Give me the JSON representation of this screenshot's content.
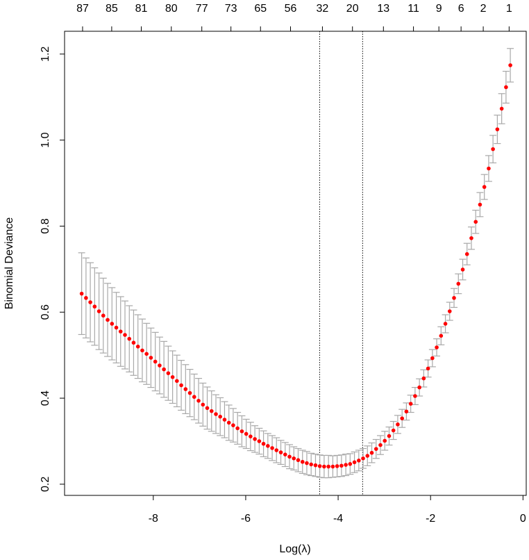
{
  "chart_data": {
    "type": "errorbar",
    "xlabel": "Log(λ)",
    "ylabel": "Binomial Deviance",
    "xlim": [
      -9.92,
      0.07
    ],
    "ylim": [
      0.174,
      1.253
    ],
    "xticks": [
      -8,
      -6,
      -4,
      -2,
      0
    ],
    "yticks": [
      0.2,
      0.4,
      0.6,
      0.8,
      {
        "value": 1,
        "label": "1.0"
      },
      1.2
    ],
    "top_ticks": [
      {
        "value": -9.53,
        "label": "87"
      },
      {
        "value": -8.9,
        "label": "85"
      },
      {
        "value": -8.26,
        "label": "81"
      },
      {
        "value": -7.61,
        "label": "80"
      },
      {
        "value": -6.95,
        "label": "77"
      },
      {
        "value": -6.32,
        "label": "73"
      },
      {
        "value": -5.68,
        "label": "65"
      },
      {
        "value": -5.03,
        "label": "56"
      },
      {
        "value": -4.34,
        "label": "32"
      },
      {
        "value": -3.69,
        "label": "20"
      },
      {
        "value": -3.02,
        "label": "13"
      },
      {
        "value": -2.37,
        "label": "11"
      },
      {
        "value": -1.82,
        "label": "9"
      },
      {
        "value": -1.34,
        "label": "6"
      },
      {
        "value": -0.86,
        "label": "2"
      },
      {
        "value": -0.3,
        "label": "1"
      }
    ],
    "vlines": [
      -4.4,
      -3.47
    ],
    "color": "#ff0000",
    "error_color": "#a8a8a8",
    "x": [
      -9.55,
      -9.456,
      -9.363,
      -9.269,
      -9.175,
      -9.082,
      -8.988,
      -8.894,
      -8.8,
      -8.707,
      -8.613,
      -8.519,
      -8.426,
      -8.332,
      -8.238,
      -8.145,
      -8.051,
      -7.957,
      -7.863,
      -7.77,
      -7.676,
      -7.582,
      -7.489,
      -7.395,
      -7.301,
      -7.208,
      -7.114,
      -7.02,
      -6.926,
      -6.833,
      -6.739,
      -6.645,
      -6.552,
      -6.458,
      -6.364,
      -6.271,
      -6.177,
      -6.083,
      -5.989,
      -5.896,
      -5.802,
      -5.708,
      -5.615,
      -5.521,
      -5.427,
      -5.334,
      -5.24,
      -5.146,
      -5.052,
      -4.959,
      -4.865,
      -4.771,
      -4.678,
      -4.584,
      -4.49,
      -4.397,
      -4.303,
      -4.209,
      -4.115,
      -4.022,
      -3.928,
      -3.834,
      -3.741,
      -3.647,
      -3.553,
      -3.46,
      -3.366,
      -3.272,
      -3.178,
      -3.085,
      -2.991,
      -2.897,
      -2.804,
      -2.71,
      -2.616,
      -2.523,
      -2.429,
      -2.335,
      -2.241,
      -2.148,
      -2.054,
      -1.96,
      -1.867,
      -1.773,
      -1.679,
      -1.586,
      -1.492,
      -1.398,
      -1.304,
      -1.211,
      -1.117,
      -1.023,
      -0.93,
      -0.836,
      -0.742,
      -0.649,
      -0.555,
      -0.461,
      -0.367,
      -0.274
    ],
    "values": [
      0.643,
      0.633,
      0.623,
      0.613,
      0.602,
      0.592,
      0.582,
      0.573,
      0.564,
      0.555,
      0.547,
      0.538,
      0.529,
      0.52,
      0.511,
      0.503,
      0.494,
      0.485,
      0.476,
      0.467,
      0.458,
      0.449,
      0.44,
      0.43,
      0.421,
      0.412,
      0.403,
      0.394,
      0.385,
      0.377,
      0.37,
      0.363,
      0.357,
      0.35,
      0.343,
      0.337,
      0.33,
      0.323,
      0.317,
      0.311,
      0.305,
      0.3,
      0.294,
      0.289,
      0.284,
      0.279,
      0.274,
      0.269,
      0.264,
      0.26,
      0.256,
      0.252,
      0.249,
      0.246,
      0.244,
      0.242,
      0.241,
      0.241,
      0.241,
      0.242,
      0.243,
      0.245,
      0.247,
      0.251,
      0.255,
      0.26,
      0.266,
      0.273,
      0.282,
      0.291,
      0.301,
      0.312,
      0.325,
      0.339,
      0.353,
      0.369,
      0.387,
      0.405,
      0.425,
      0.446,
      0.469,
      0.493,
      0.518,
      0.545,
      0.573,
      0.602,
      0.633,
      0.666,
      0.699,
      0.735,
      0.772,
      0.81,
      0.85,
      0.891,
      0.934,
      0.979,
      1.025,
      1.073,
      1.123,
      1.174
    ],
    "errors": [
      0.095,
      0.093,
      0.092,
      0.09,
      0.089,
      0.087,
      0.085,
      0.084,
      0.082,
      0.081,
      0.079,
      0.077,
      0.076,
      0.074,
      0.073,
      0.071,
      0.069,
      0.068,
      0.066,
      0.065,
      0.063,
      0.061,
      0.06,
      0.058,
      0.057,
      0.055,
      0.053,
      0.052,
      0.05,
      0.049,
      0.047,
      0.045,
      0.044,
      0.042,
      0.041,
      0.039,
      0.037,
      0.036,
      0.034,
      0.033,
      0.031,
      0.03,
      0.03,
      0.029,
      0.029,
      0.029,
      0.028,
      0.028,
      0.028,
      0.027,
      0.027,
      0.027,
      0.027,
      0.026,
      0.026,
      0.026,
      0.026,
      0.026,
      0.025,
      0.025,
      0.025,
      0.025,
      0.024,
      0.024,
      0.024,
      0.023,
      0.023,
      0.023,
      0.022,
      0.022,
      0.022,
      0.021,
      0.021,
      0.021,
      0.021,
      0.02,
      0.02,
      0.02,
      0.02,
      0.02,
      0.02,
      0.02,
      0.02,
      0.021,
      0.021,
      0.021,
      0.022,
      0.023,
      0.024,
      0.025,
      0.026,
      0.027,
      0.028,
      0.029,
      0.03,
      0.032,
      0.033,
      0.035,
      0.037,
      0.039
    ]
  }
}
